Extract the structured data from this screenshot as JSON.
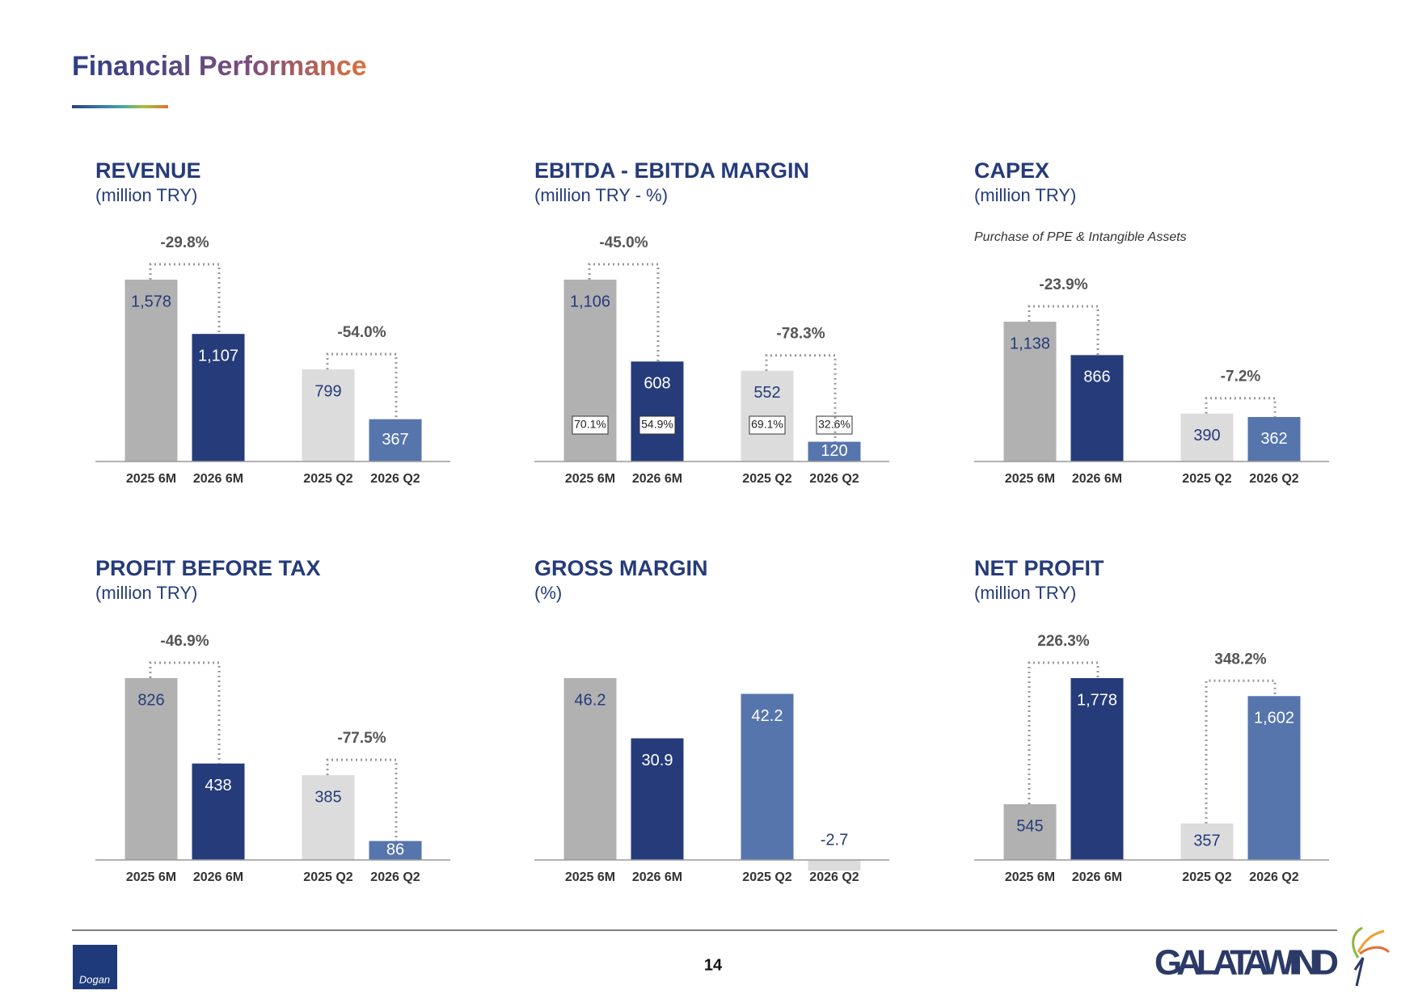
{
  "page": {
    "title": "Financial Performance",
    "page_number": "14",
    "logo_left": "Dogan",
    "logo_right": "GALATAWIND"
  },
  "chart_data": [
    {
      "type": "bar",
      "title": "REVENUE",
      "subtitle": "(million TRY)",
      "categories": [
        "2025 6M",
        "2026 6M",
        "2025 Q2",
        "2026 Q2"
      ],
      "values": [
        1578,
        1107,
        799,
        367
      ],
      "value_labels": [
        "1,578",
        "1,107",
        "799",
        "367"
      ],
      "colors": [
        "#b1b1b1",
        "#253b7a",
        "#dcdcdc",
        "#5675ad"
      ],
      "changes": [
        "-29.8%",
        "-54.0%"
      ]
    },
    {
      "type": "bar",
      "title": "EBITDA - EBITDA MARGIN",
      "subtitle": "(million TRY - %)",
      "categories": [
        "2025 6M",
        "2026 6M",
        "2025 Q2",
        "2026 Q2"
      ],
      "values": [
        1106,
        608,
        552,
        120
      ],
      "value_labels": [
        "1,106",
        "608",
        "552",
        "120"
      ],
      "colors": [
        "#b1b1b1",
        "#253b7a",
        "#dcdcdc",
        "#5675ad"
      ],
      "changes": [
        "-45.0%",
        "-78.3%"
      ],
      "margin": {
        "values": [
          70.1,
          54.9,
          69.1,
          32.6
        ],
        "value_labels": [
          "70.1%",
          "54.9%",
          "69.1%",
          "32.6%"
        ]
      }
    },
    {
      "type": "bar",
      "title": "CAPEX",
      "subtitle": "(million TRY)",
      "note": "Purchase of PPE & Intangible Assets",
      "categories": [
        "2025 6M",
        "2026 6M",
        "2025 Q2",
        "2026 Q2"
      ],
      "values": [
        1138,
        866,
        390,
        362
      ],
      "value_labels": [
        "1,138",
        "866",
        "390",
        "362"
      ],
      "colors": [
        "#b1b1b1",
        "#253b7a",
        "#dcdcdc",
        "#5675ad"
      ],
      "changes": [
        "-23.9%",
        "-7.2%"
      ]
    },
    {
      "type": "bar",
      "title": "PROFIT BEFORE TAX",
      "subtitle": "(million TRY)",
      "categories": [
        "2025 6M",
        "2026 6M",
        "2025 Q2",
        "2026 Q2"
      ],
      "values": [
        826,
        438,
        385,
        86
      ],
      "colors": [
        "#b1b1b1",
        "#253b7a",
        "#dcdcdc",
        "#5675ad"
      ],
      "changes": [
        "-46.9%",
        "-77.5%"
      ]
    },
    {
      "type": "bar",
      "title": "GROSS MARGIN",
      "subtitle": "(%)",
      "categories": [
        "2025 6M",
        "2026 6M",
        "2025 Q2",
        "2026 Q2"
      ],
      "values": [
        46.2,
        30.9,
        42.2,
        -2.7
      ],
      "colors": [
        "#b1b1b1",
        "#253b7a",
        "#5675ad",
        "#dcdcdc"
      ]
    },
    {
      "type": "bar",
      "title": "NET PROFIT",
      "subtitle": "(million TRY)",
      "categories": [
        "2025 6M",
        "2026 6M",
        "2025 Q2",
        "2026 Q2"
      ],
      "values": [
        545,
        1778,
        357,
        1602
      ],
      "value_labels": [
        "545",
        "1,778",
        "357",
        "1,602"
      ],
      "colors": [
        "#b1b1b1",
        "#253b7a",
        "#dcdcdc",
        "#5675ad"
      ],
      "changes": [
        "226.3%",
        "348.2%"
      ]
    }
  ]
}
